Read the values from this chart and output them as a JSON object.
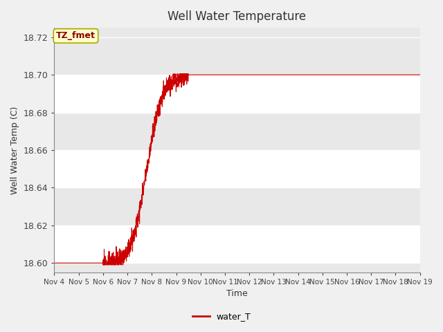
{
  "title": "Well Water Temperature",
  "xlabel": "Time",
  "ylabel": "Well Water Temp (C)",
  "ylim": [
    18.595,
    18.725
  ],
  "xlim_days": [
    0,
    15
  ],
  "x_tick_labels": [
    "Nov 4",
    "Nov 5",
    "Nov 6",
    "Nov 7",
    "Nov 8",
    "Nov 9",
    "Nov 10",
    "Nov 11",
    "Nov 12",
    "Nov 13",
    "Nov 14",
    "Nov 15",
    "Nov 16",
    "Nov 17",
    "Nov 18",
    "Nov 19"
  ],
  "line_color": "#cc0000",
  "line_label": "water_T",
  "legend_label_box_color": "#ffffcc",
  "legend_label_text_color": "#8b0000",
  "annotation_text": "TZ_fmet",
  "background_color": "#f0f0f0",
  "plot_bg_color": "#e8e8e8",
  "grid_color": "#ffffff",
  "y_ticks": [
    18.6,
    18.62,
    18.64,
    18.66,
    18.68,
    18.7,
    18.72
  ],
  "sigmoid_x0": 3.8,
  "sigmoid_k": 3.2,
  "y_low": 18.6,
  "y_high": 18.7,
  "flat_end_start": 5.5
}
